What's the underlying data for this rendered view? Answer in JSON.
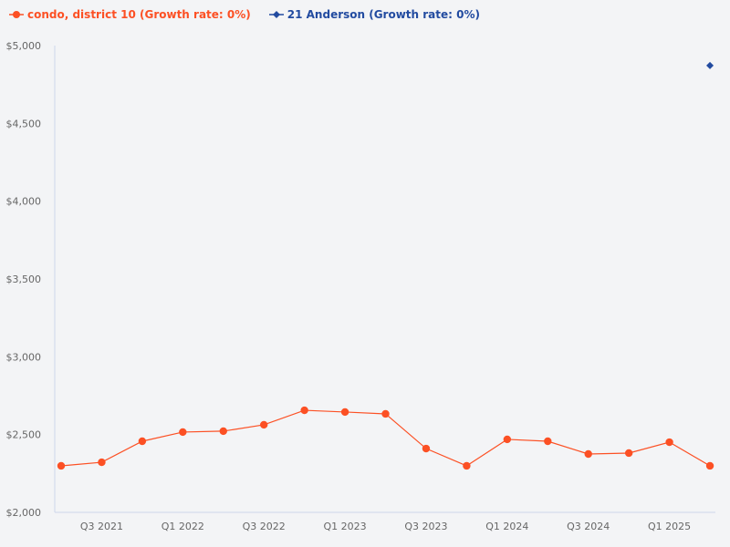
{
  "legend": [
    {
      "label": "condo, district 10 (Growth rate: 0%)",
      "color": "#fc5024",
      "marker": "circle"
    },
    {
      "label": "21 Anderson (Growth rate: 0%)",
      "color": "#224ba0",
      "marker": "diamond"
    }
  ],
  "chart_data": {
    "type": "line",
    "title": "",
    "xlabel": "",
    "ylabel": "",
    "ylim": [
      2000,
      5000
    ],
    "y_ticks": [
      "$2,000",
      "$2,500",
      "$3,000",
      "$3,500",
      "$4,000",
      "$4,500",
      "$5,000"
    ],
    "x_tick_labels": [
      "Q3 2021",
      "Q1 2022",
      "Q3 2022",
      "Q1 2023",
      "Q3 2023",
      "Q1 2024",
      "Q3 2024",
      "Q1 2025"
    ],
    "x": [
      "Q2 2021",
      "Q3 2021",
      "Q4 2021",
      "Q1 2022",
      "Q2 2022",
      "Q3 2022",
      "Q4 2022",
      "Q1 2023",
      "Q2 2023",
      "Q3 2023",
      "Q4 2023",
      "Q1 2024",
      "Q2 2024",
      "Q3 2024",
      "Q4 2024",
      "Q1 2025",
      "Q2 2025"
    ],
    "grid": false,
    "legend_position": "top-left",
    "series": [
      {
        "name": "condo, district 10 (Growth rate: 0%)",
        "color": "#fc5024",
        "values": [
          2299,
          2322,
          2457,
          2516,
          2522,
          2563,
          2656,
          2645,
          2633,
          2410,
          2299,
          2469,
          2457,
          2375,
          2381,
          2451,
          2299
        ]
      },
      {
        "name": "21 Anderson (Growth rate: 0%)",
        "color": "#224ba0",
        "values": [
          null,
          null,
          null,
          null,
          null,
          null,
          null,
          null,
          null,
          null,
          null,
          null,
          null,
          null,
          null,
          null,
          4872
        ]
      }
    ]
  }
}
